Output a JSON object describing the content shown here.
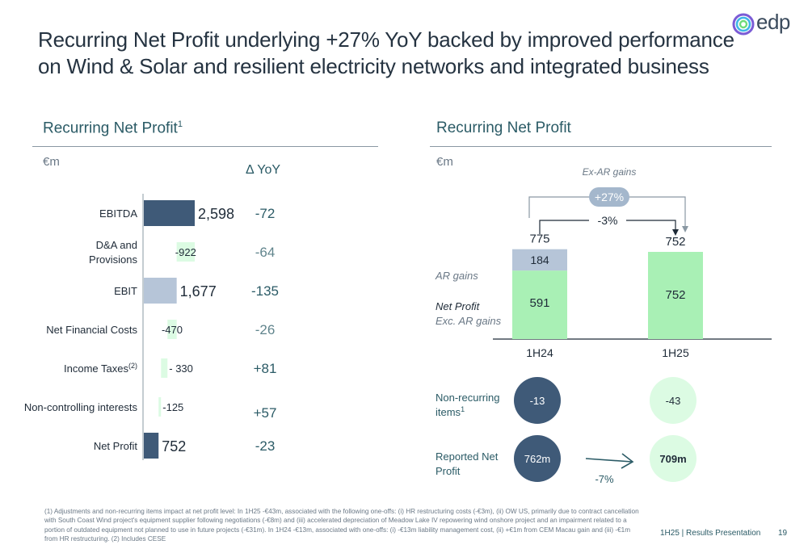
{
  "header": {
    "title_line1": "Recurring Net Profit underlying +27% YoY backed by improved performance",
    "title_line2": "on Wind & Solar and resilient electricity networks and integrated business",
    "logo_text": "edp"
  },
  "colors": {
    "dark_blue": "#3f5a78",
    "light_blue": "#b6c5d8",
    "light_green": "#dcfbe3",
    "bright_green": "#a9f0b5",
    "teal": "#2b5b66"
  },
  "left_panel": {
    "title": "Recurring Net Profit",
    "title_sup": "1",
    "unit": "€m",
    "yoy_header": "Δ YoY"
  },
  "right_panel": {
    "title": "Recurring Net Profit",
    "unit": "€m",
    "ex_ar_label": "Ex-AR gains",
    "growth_badge": "+27%",
    "change_label": "-3%",
    "legend_ar": "AR gains",
    "legend_np_line1": "Net Profit",
    "legend_np_line2": "Exc. AR gains",
    "nonrec_label_line1": "Non-recurring",
    "nonrec_label_line2": "items",
    "nonrec_sup": "1",
    "reported_label_line1": "Reported Net",
    "reported_label_line2": "Profit",
    "reported_change": "-7%"
  },
  "chart_data": [
    {
      "type": "bar",
      "subtype": "waterfall",
      "title": "Recurring Net Profit",
      "unit": "€m",
      "categories": [
        "EBITDA",
        "D&A and Provisions",
        "EBIT",
        "Net Financial Costs",
        "Income Taxes(2)",
        "Non-controlling interests",
        "Net Profit"
      ],
      "values": [
        2598,
        -922,
        1677,
        -470,
        -330,
        -125,
        752
      ],
      "value_labels": [
        "2,598",
        "-922",
        "1,677",
        "-470",
        "- 330",
        "-125",
        "752"
      ],
      "yoy": [
        "-72",
        "-64",
        "-135",
        "-26",
        "+81",
        "+57",
        "-23"
      ],
      "kind": [
        "total",
        "delta",
        "total",
        "delta",
        "delta",
        "delta",
        "total"
      ]
    },
    {
      "type": "bar",
      "subtype": "stacked",
      "title": "Recurring Net Profit",
      "unit": "€m",
      "categories": [
        "1H24",
        "1H25"
      ],
      "series": [
        {
          "name": "Net Profit Exc. AR gains",
          "values": [
            591,
            752
          ]
        },
        {
          "name": "AR gains",
          "values": [
            184,
            0
          ]
        }
      ],
      "totals": [
        "775",
        "752"
      ],
      "non_recurring": [
        "-13",
        "-43"
      ],
      "reported": [
        "762m",
        "709m"
      ]
    }
  ],
  "footer": {
    "footnote": "(1) Adjustments and non-recurring items impact at net profit level: In 1H25 -€43m, associated with the following one-offs: (i) HR restructuring costs (-€3m), (ii) OW US, primarily due to contract cancellation with South Coast Wind project's equipment supplier following negotiations (-€8m) and (iii) accelerated depreciation of Meadow Lake IV repowering wind onshore project and an impairment related to a portion of outdated equipment not planned to use in future projects (-€31m). In 1H24 -€13m, associated with one-offs: (i) -€13m liability management cost, (ii) +€1m from CEM Macau gain and (iii) -€1m from HR restructuring. (2) Includes CESE",
    "label": "1H25 | Results Presentation",
    "page": "19"
  }
}
